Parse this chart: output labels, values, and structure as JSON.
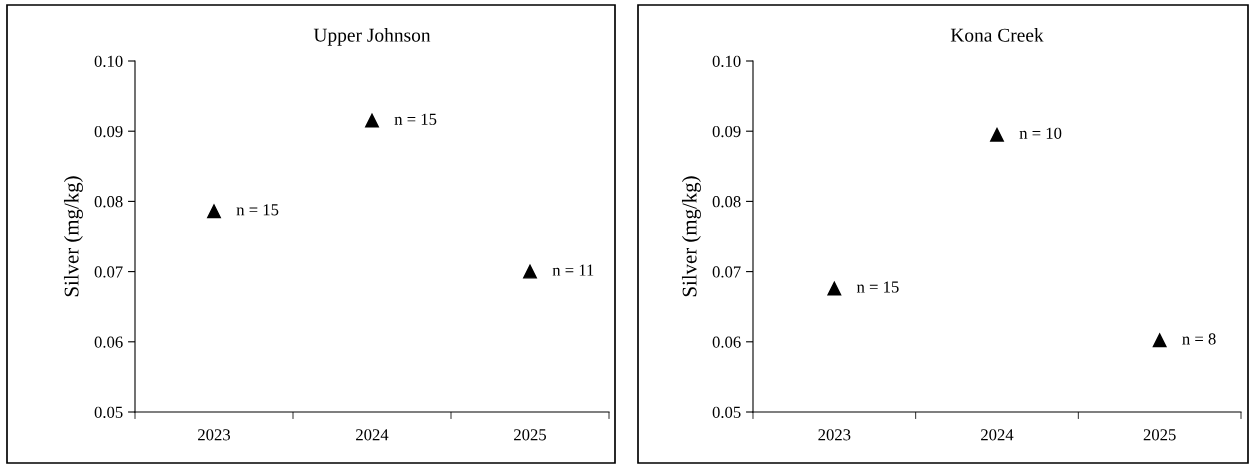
{
  "chart_data": [
    {
      "type": "scatter",
      "title": "Upper Johnson",
      "ylabel": "Silver (mg/kg)",
      "categories": [
        "2023",
        "2024",
        "2025"
      ],
      "values": [
        0.0786,
        0.0915,
        0.07
      ],
      "color": "#000000",
      "marker": "triangle",
      "ylim": [
        0.05,
        0.1
      ],
      "yticks": [
        {
          "value": 0.05,
          "label": "0.05"
        },
        {
          "value": 0.06,
          "label": "0.06"
        },
        {
          "value": 0.07,
          "label": "0.07"
        },
        {
          "value": 0.08,
          "label": "0.08"
        },
        {
          "value": 0.09,
          "label": "0.09"
        },
        {
          "value": 0.1,
          "label": "0.10"
        }
      ],
      "grid": false,
      "legend": false,
      "annotations": [
        {
          "text": "n = 15",
          "x": "2023",
          "y": 0.0786
        },
        {
          "text": "n = 15",
          "x": "2024",
          "y": 0.0915
        },
        {
          "text": "n = 11",
          "x": "2025",
          "y": 0.07
        }
      ]
    },
    {
      "type": "scatter",
      "title": "Kona Creek",
      "ylabel": "Silver (mg/kg)",
      "categories": [
        "2023",
        "2024",
        "2025"
      ],
      "values": [
        0.0676,
        0.0895,
        0.0602
      ],
      "color": "#000000",
      "marker": "triangle",
      "ylim": [
        0.05,
        0.1
      ],
      "yticks": [
        {
          "value": 0.05,
          "label": "0.05"
        },
        {
          "value": 0.06,
          "label": "0.06"
        },
        {
          "value": 0.07,
          "label": "0.07"
        },
        {
          "value": 0.08,
          "label": "0.08"
        },
        {
          "value": 0.09,
          "label": "0.09"
        },
        {
          "value": 0.1,
          "label": "0.10"
        }
      ],
      "grid": false,
      "legend": false,
      "annotations": [
        {
          "text": "n = 15",
          "x": "2023",
          "y": 0.0676
        },
        {
          "text": "n = 10",
          "x": "2024",
          "y": 0.0895
        },
        {
          "text": "n = 8",
          "x": "2025",
          "y": 0.0602
        }
      ]
    }
  ]
}
